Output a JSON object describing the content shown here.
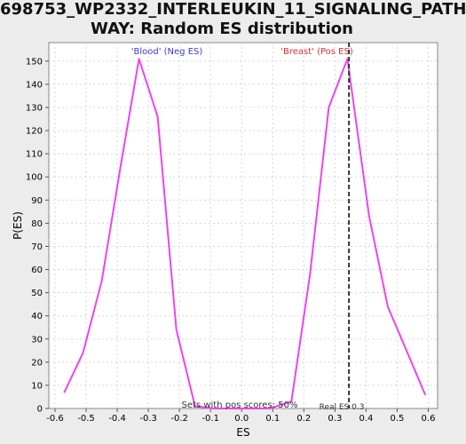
{
  "chart_data": {
    "type": "line",
    "title_line1": "698753_WP2332_INTERLEUKIN_11_SIGNALING_PATH",
    "title_line2": "WAY: Random ES distribution",
    "xlabel": "ES",
    "ylabel": "P(ES)",
    "xlim": [
      -0.62,
      0.63
    ],
    "ylim": [
      0,
      158
    ],
    "x_ticks": [
      -0.6,
      -0.5,
      -0.4,
      -0.3,
      -0.2,
      -0.1,
      0.0,
      0.1,
      0.2,
      0.3,
      0.4,
      0.5,
      0.6
    ],
    "y_ticks": [
      0,
      10,
      20,
      30,
      40,
      50,
      60,
      70,
      80,
      90,
      100,
      110,
      120,
      130,
      140,
      150
    ],
    "grid": true,
    "series": [
      {
        "color": "#ee44ee",
        "x": [
          -0.57,
          -0.51,
          -0.45,
          -0.39,
          -0.33,
          -0.27,
          -0.21,
          -0.15,
          -0.09,
          -0.03,
          0.03,
          0.09,
          0.16,
          0.22,
          0.28,
          0.34,
          0.41,
          0.47,
          0.53,
          0.59
        ],
        "y": [
          7,
          24,
          55,
          104,
          151,
          126,
          34,
          1,
          0,
          0,
          0,
          0,
          3,
          58,
          130,
          151,
          83,
          44,
          25,
          6
        ]
      }
    ],
    "annotations": {
      "neg_label": "'Blood' (Neg ES)",
      "neg_label_color": "#3a3ad0",
      "pos_label": "'Breast' (Pos ES)",
      "pos_label_color": "#e03030",
      "pos_scores_text": "Sets with pos scores: 50%",
      "real_es_text": "Real ES 0.3",
      "real_es_value": 0.345
    }
  }
}
